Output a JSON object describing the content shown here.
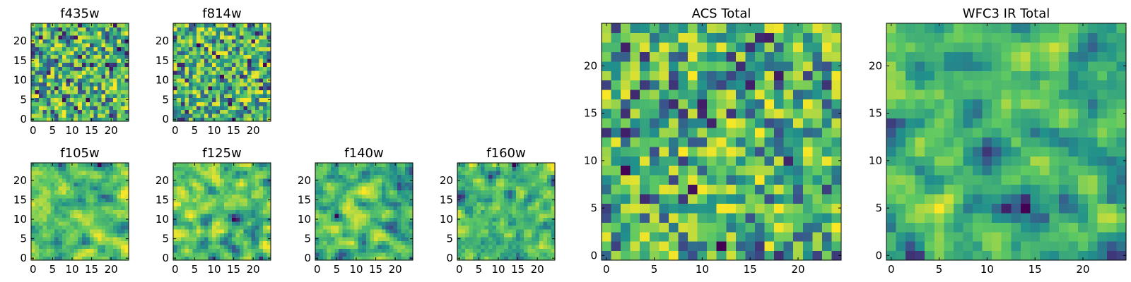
{
  "figure": {
    "colormap": "viridis",
    "colors": [
      "#440154",
      "#3b528b",
      "#21918c",
      "#5ec962",
      "#fde725"
    ]
  },
  "chart_data": [
    {
      "id": "f435w",
      "type": "heatmap",
      "title": "f435w",
      "size": 25,
      "seed": 11,
      "smooth": 0,
      "xticks": [
        0,
        5,
        10,
        15,
        20
      ],
      "yticks": [
        0,
        5,
        10,
        15,
        20
      ],
      "xlim": [
        0,
        24
      ],
      "ylim": [
        0,
        24
      ]
    },
    {
      "id": "f814w",
      "type": "heatmap",
      "title": "f814w",
      "size": 25,
      "seed": 27,
      "smooth": 0,
      "xticks": [
        0,
        5,
        10,
        15,
        20
      ],
      "yticks": [
        0,
        5,
        10,
        15,
        20
      ],
      "xlim": [
        0,
        24
      ],
      "ylim": [
        0,
        24
      ]
    },
    {
      "id": "f105w",
      "type": "heatmap",
      "title": "f105w",
      "size": 25,
      "seed": 43,
      "smooth": 1,
      "xticks": [
        0,
        5,
        10,
        15,
        20
      ],
      "yticks": [
        0,
        5,
        10,
        15,
        20
      ],
      "xlim": [
        0,
        24
      ],
      "ylim": [
        0,
        24
      ]
    },
    {
      "id": "f125w",
      "type": "heatmap",
      "title": "f125w",
      "size": 25,
      "seed": 59,
      "smooth": 1,
      "xticks": [
        0,
        5,
        10,
        15,
        20
      ],
      "yticks": [
        0,
        5,
        10,
        15,
        20
      ],
      "xlim": [
        0,
        24
      ],
      "ylim": [
        0,
        24
      ]
    },
    {
      "id": "f140w",
      "type": "heatmap",
      "title": "f140w",
      "size": 25,
      "seed": 71,
      "smooth": 1,
      "xticks": [
        0,
        5,
        10,
        15,
        20
      ],
      "yticks": [
        0,
        5,
        10,
        15,
        20
      ],
      "xlim": [
        0,
        24
      ],
      "ylim": [
        0,
        24
      ]
    },
    {
      "id": "f160w",
      "type": "heatmap",
      "title": "f160w",
      "size": 25,
      "seed": 89,
      "smooth": 1,
      "xticks": [
        0,
        5,
        10,
        15,
        20
      ],
      "yticks": [
        0,
        5,
        10,
        15,
        20
      ],
      "xlim": [
        0,
        24
      ],
      "ylim": [
        0,
        24
      ]
    },
    {
      "id": "acs",
      "type": "heatmap",
      "title": "ACS Total",
      "size": 25,
      "seed": 101,
      "smooth": 0,
      "xticks": [
        0,
        5,
        10,
        15,
        20
      ],
      "yticks": [
        0,
        5,
        10,
        15,
        20
      ],
      "xlim": [
        0,
        24
      ],
      "ylim": [
        0,
        24
      ]
    },
    {
      "id": "wfc3",
      "type": "heatmap",
      "title": "WFC3 IR Total",
      "size": 25,
      "seed": 131,
      "smooth": 1,
      "xticks": [
        0,
        5,
        10,
        15,
        20
      ],
      "yticks": [
        0,
        5,
        10,
        15,
        20
      ],
      "xlim": [
        0,
        24
      ],
      "ylim": [
        0,
        24
      ]
    }
  ]
}
